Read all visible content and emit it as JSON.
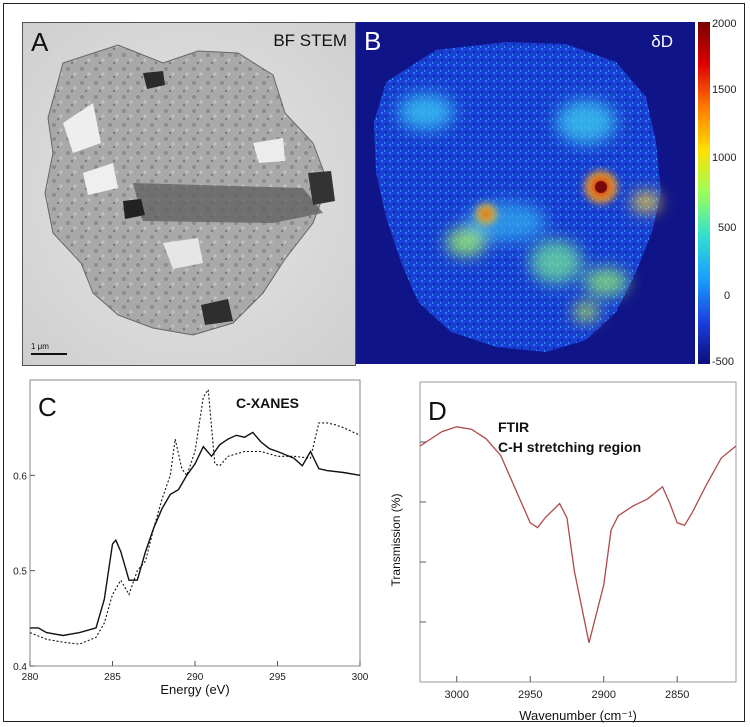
{
  "panels": {
    "a": {
      "letter": "A",
      "label": "BF STEM",
      "scalebar": "1 μm"
    },
    "b": {
      "letter": "B",
      "label": "δD",
      "colorbar_ticks": [
        "2000",
        "1500",
        "1000",
        "500",
        "0",
        "-500"
      ]
    },
    "c": {
      "letter": "C",
      "label": "C-XANES"
    },
    "d": {
      "letter": "D",
      "label_line1": "FTIR",
      "label_line2": "C-H stretching region"
    }
  },
  "chart_data": [
    {
      "type": "line",
      "title": "C-XANES",
      "xlabel": "Energy (eV)",
      "ylabel": "",
      "xlim": [
        280,
        300
      ],
      "ylim": [
        0.4,
        0.7
      ],
      "x_ticks": [
        "280",
        "285",
        "290",
        "295",
        "300"
      ],
      "y_ticks": [
        "0.4",
        "0.5",
        "0.6"
      ],
      "series": [
        {
          "style": "solid",
          "x": [
            280,
            280.5,
            281,
            282,
            283,
            284,
            284.5,
            285,
            285.2,
            285.5,
            286,
            286.5,
            287,
            287.5,
            288,
            288.5,
            289,
            289.5,
            290,
            290.5,
            291,
            291.5,
            292,
            292.5,
            293,
            293.5,
            294,
            294.5,
            295,
            296,
            296.5,
            297,
            297.5,
            298,
            299,
            300
          ],
          "y": [
            0.44,
            0.44,
            0.435,
            0.432,
            0.435,
            0.44,
            0.47,
            0.528,
            0.532,
            0.52,
            0.49,
            0.49,
            0.52,
            0.545,
            0.565,
            0.58,
            0.585,
            0.6,
            0.612,
            0.63,
            0.62,
            0.632,
            0.638,
            0.642,
            0.64,
            0.645,
            0.635,
            0.628,
            0.625,
            0.618,
            0.61,
            0.625,
            0.607,
            0.605,
            0.603,
            0.6
          ]
        },
        {
          "style": "dotted",
          "x": [
            280,
            281,
            282,
            283,
            284,
            284.5,
            285,
            285.5,
            286,
            286.5,
            287,
            287.5,
            288,
            288.5,
            288.8,
            289.2,
            289.5,
            290,
            290.5,
            290.8,
            291.2,
            291.5,
            292,
            293,
            294,
            295,
            296,
            297,
            297.5,
            298,
            298.5,
            299,
            300
          ],
          "y": [
            0.435,
            0.428,
            0.425,
            0.423,
            0.43,
            0.445,
            0.475,
            0.49,
            0.475,
            0.5,
            0.51,
            0.545,
            0.575,
            0.6,
            0.638,
            0.607,
            0.6,
            0.625,
            0.682,
            0.69,
            0.612,
            0.61,
            0.62,
            0.625,
            0.625,
            0.62,
            0.62,
            0.618,
            0.655,
            0.655,
            0.653,
            0.65,
            0.642
          ]
        }
      ]
    },
    {
      "type": "line",
      "title": "FTIR C-H stretching region",
      "xlabel": "Wavenumber (cm⁻¹)",
      "ylabel": "Transmission (%)",
      "xlim": [
        3025,
        2810
      ],
      "x_ticks": [
        "3000",
        "2950",
        "2900",
        "2850"
      ],
      "series": [
        {
          "color": "#b04a4a",
          "x": [
            3025,
            3010,
            3000,
            2990,
            2980,
            2970,
            2960,
            2950,
            2945,
            2940,
            2930,
            2925,
            2920,
            2910,
            2900,
            2895,
            2890,
            2880,
            2870,
            2860,
            2855,
            2850,
            2845,
            2840,
            2830,
            2820,
            2810
          ],
          "y": [
            0.9,
            0.96,
            0.98,
            0.97,
            0.93,
            0.86,
            0.72,
            0.58,
            0.56,
            0.6,
            0.66,
            0.6,
            0.38,
            0.08,
            0.32,
            0.55,
            0.61,
            0.65,
            0.68,
            0.73,
            0.66,
            0.58,
            0.57,
            0.62,
            0.74,
            0.85,
            0.9
          ]
        }
      ]
    }
  ]
}
